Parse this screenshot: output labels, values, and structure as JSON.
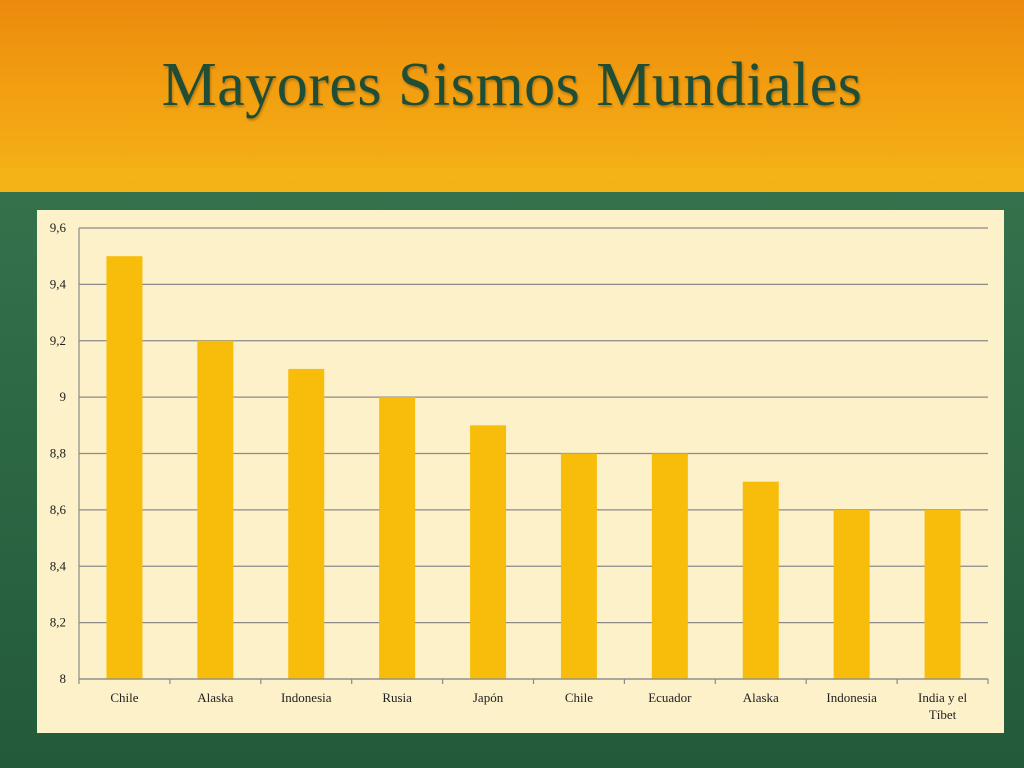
{
  "slide": {
    "title": "Mayores Sismos Mundiales"
  },
  "colors": {
    "header_orange": "#f29e10",
    "background_green": "#2f6b47",
    "title_color": "#1f4d35",
    "plot_background": "#fdf1c9",
    "bar_color": "#f7bd0a",
    "gridline_color": "#8a8a8a"
  },
  "chart_data": {
    "type": "bar",
    "title": "",
    "xlabel": "",
    "ylabel": "",
    "categories": [
      "Chile",
      "Alaska",
      "Indonesia",
      "Rusia",
      "Japón",
      "Chile",
      "Ecuador",
      "Alaska",
      "Indonesia",
      "India y el Tíbet"
    ],
    "category_lines": [
      [
        "Chile"
      ],
      [
        "Alaska"
      ],
      [
        "Indonesia"
      ],
      [
        "Rusia"
      ],
      [
        "Japón"
      ],
      [
        "Chile"
      ],
      [
        "Ecuador"
      ],
      [
        "Alaska"
      ],
      [
        "Indonesia"
      ],
      [
        "India y el",
        "Tíbet"
      ]
    ],
    "values": [
      9.5,
      9.2,
      9.1,
      9.0,
      8.9,
      8.8,
      8.8,
      8.7,
      8.6,
      8.6
    ],
    "ylim": [
      8,
      9.6
    ],
    "yticks": [
      8,
      8.2,
      8.4,
      8.6,
      8.8,
      9,
      9.2,
      9.4,
      9.6
    ],
    "ytick_labels": [
      "8",
      "8,2",
      "8,4",
      "8,6",
      "8,8",
      "9",
      "9,2",
      "9,4",
      "9,6"
    ],
    "grid": true,
    "legend": "none"
  }
}
